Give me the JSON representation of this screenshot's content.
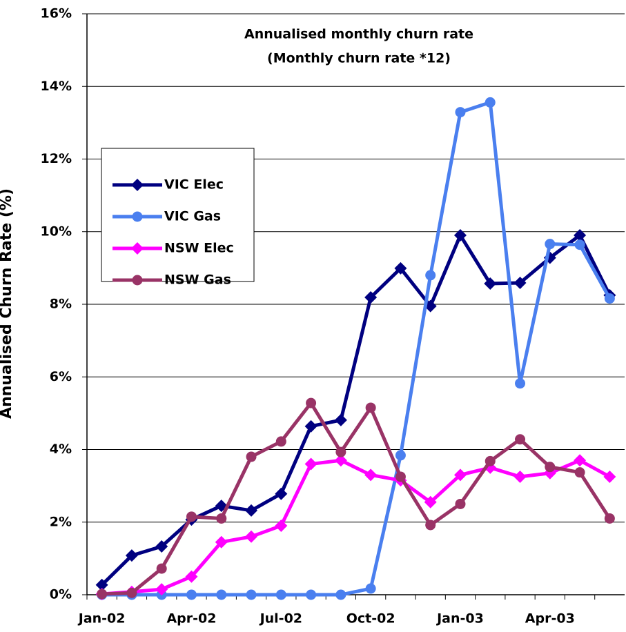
{
  "chart_data": {
    "type": "line",
    "title": "Annualised monthly churn rate",
    "subtitle": "(Monthly churn rate *12)",
    "y_label": "Annualised Churn Rate (%)",
    "categories": [
      "Jan-02",
      null,
      null,
      "Apr-02",
      null,
      null,
      "Jul-02",
      null,
      null,
      "Oct-02",
      null,
      null,
      "Jan-03",
      null,
      null,
      "Apr-03",
      null,
      null
    ],
    "series": [
      {
        "name": "VIC Elec",
        "color": "#000080",
        "marker": "diamond",
        "values": [
          0.27,
          1.08,
          1.33,
          2.07,
          2.45,
          2.32,
          2.78,
          4.64,
          4.81,
          8.19,
          8.99,
          7.95,
          9.9,
          8.57,
          8.59,
          9.28,
          9.9,
          8.25
        ]
      },
      {
        "name": "VIC Gas",
        "color": "#4a7fef",
        "marker": "circle",
        "values": [
          0,
          0,
          0,
          0,
          0,
          0,
          0,
          0,
          0,
          0.17,
          3.84,
          8.8,
          13.29,
          13.56,
          5.82,
          9.66,
          9.64,
          8.16
        ]
      },
      {
        "name": "NSW Elec",
        "color": "#ff00ff",
        "marker": "diamond",
        "values": [
          0.02,
          0.08,
          0.15,
          0.5,
          1.45,
          1.6,
          1.9,
          3.6,
          3.7,
          3.3,
          3.15,
          2.55,
          3.3,
          3.5,
          3.25,
          3.35,
          3.7,
          3.25
        ]
      },
      {
        "name": "NSW Gas",
        "color": "#993366",
        "marker": "circle",
        "values": [
          0.02,
          0.05,
          0.72,
          2.15,
          2.1,
          3.8,
          4.22,
          5.28,
          3.93,
          5.15,
          3.25,
          1.92,
          2.5,
          3.68,
          4.28,
          3.52,
          3.37,
          2.1
        ]
      }
    ],
    "ylim": [
      0,
      16
    ],
    "yticks": [
      {
        "value": 0,
        "label": "0%"
      },
      {
        "value": 2,
        "label": "2%"
      },
      {
        "value": 4,
        "label": "4%"
      },
      {
        "value": 6,
        "label": "6%"
      },
      {
        "value": 8,
        "label": "8%"
      },
      {
        "value": 10,
        "label": "10%"
      },
      {
        "value": 12,
        "label": "12%"
      },
      {
        "value": 14,
        "label": "14%"
      },
      {
        "value": 16,
        "label": "16%"
      }
    ],
    "grid": true
  }
}
